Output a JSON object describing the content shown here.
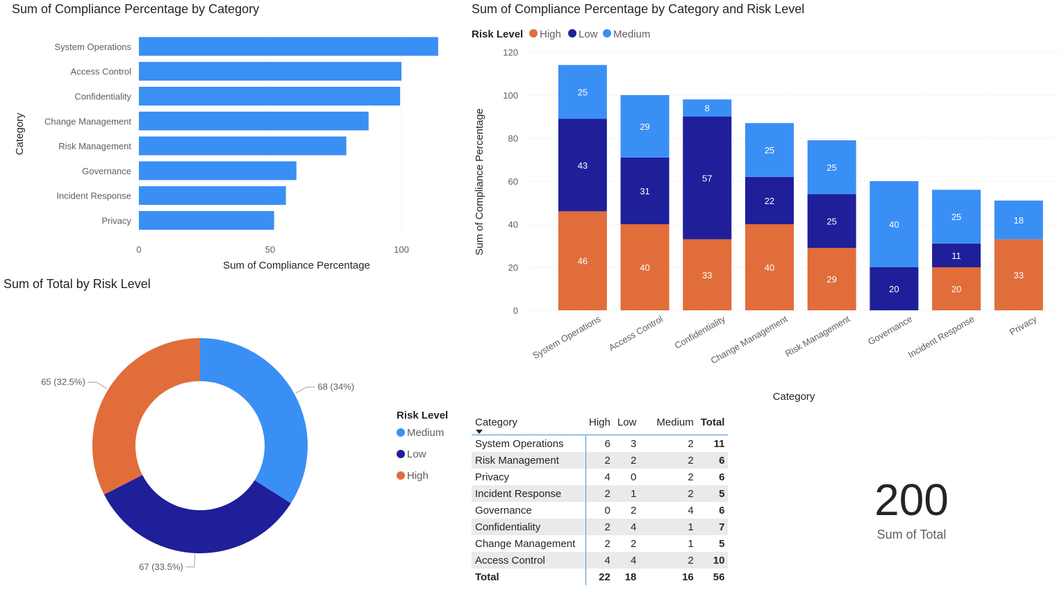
{
  "colors": {
    "high": "#e06d3a",
    "low": "#1f1f99",
    "medium": "#3a8ff5",
    "bar": "#3a8ff5"
  },
  "chart_data": [
    {
      "type": "bar",
      "orientation": "horizontal",
      "title": "Sum of Compliance Percentage by Category",
      "xlabel": "Sum of Compliance Percentage",
      "ylabel": "Category",
      "xlim": [
        0,
        115
      ],
      "xticks": [
        "0",
        "50",
        "100"
      ],
      "grid": true,
      "categories": [
        "System Operations",
        "Access Control",
        "Confidentiality",
        "Change Management",
        "Risk Management",
        "Governance",
        "Incident Response",
        "Privacy"
      ],
      "values": [
        114,
        100,
        99.5,
        87.5,
        79,
        60,
        56,
        51.5
      ]
    },
    {
      "type": "bar",
      "stacked": true,
      "title": "Sum of Compliance Percentage by Category and Risk Level",
      "xlabel": "Category",
      "ylabel": "Sum of Compliance Percentage",
      "ylim": [
        0,
        120
      ],
      "yticks": [
        "0",
        "20",
        "40",
        "60",
        "80",
        "100",
        "120"
      ],
      "grid": true,
      "legend_title": "Risk Level",
      "legend_position": "top-left",
      "categories": [
        "System Operations",
        "Access Control",
        "Confidentiality",
        "Change Management",
        "Risk Management",
        "Governance",
        "Incident Response",
        "Privacy"
      ],
      "series": [
        {
          "name": "High",
          "color": "#e06d3a",
          "values": [
            46,
            40,
            33,
            40,
            29,
            0,
            20,
            33
          ],
          "labels": [
            "46",
            "40",
            "33",
            "40",
            "29",
            "",
            "20",
            "33"
          ]
        },
        {
          "name": "Low",
          "color": "#1f1f99",
          "values": [
            43,
            31,
            57,
            22,
            25,
            20,
            11,
            0
          ],
          "labels": [
            "43",
            "31",
            "57",
            "22",
            "25",
            "20",
            "11",
            ""
          ]
        },
        {
          "name": "Medium",
          "color": "#3a8ff5",
          "values": [
            25,
            29,
            8,
            25,
            25,
            40,
            25,
            18
          ],
          "labels": [
            "25",
            "29",
            "8",
            "25",
            "25",
            "40",
            "25",
            "18"
          ]
        }
      ]
    },
    {
      "type": "pie",
      "donut": true,
      "title": "Sum of Total by Risk Level",
      "legend_title": "Risk Level",
      "legend_position": "right",
      "slices": [
        {
          "name": "Medium",
          "value": 68,
          "label": "68 (34%)",
          "color": "#3a8ff5"
        },
        {
          "name": "Low",
          "value": 67,
          "label": "67 (33.5%)",
          "color": "#1f1f99"
        },
        {
          "name": "High",
          "value": 65,
          "label": "65 (32.5%)",
          "color": "#e06d3a"
        }
      ]
    },
    {
      "type": "table",
      "columns": [
        "Category",
        "High",
        "Low",
        "Medium",
        "Total"
      ],
      "rows": [
        [
          "System Operations",
          "6",
          "3",
          "2",
          "11"
        ],
        [
          "Risk Management",
          "2",
          "2",
          "2",
          "6"
        ],
        [
          "Privacy",
          "4",
          "0",
          "2",
          "6"
        ],
        [
          "Incident Response",
          "2",
          "1",
          "2",
          "5"
        ],
        [
          "Governance",
          "0",
          "2",
          "4",
          "6"
        ],
        [
          "Confidentiality",
          "2",
          "4",
          "1",
          "7"
        ],
        [
          "Change Management",
          "2",
          "2",
          "1",
          "5"
        ],
        [
          "Access Control",
          "4",
          "4",
          "2",
          "10"
        ]
      ],
      "total_row": [
        "Total",
        "22",
        "18",
        "16",
        "56"
      ]
    }
  ],
  "card": {
    "value": "200",
    "label": "Sum of Total"
  }
}
